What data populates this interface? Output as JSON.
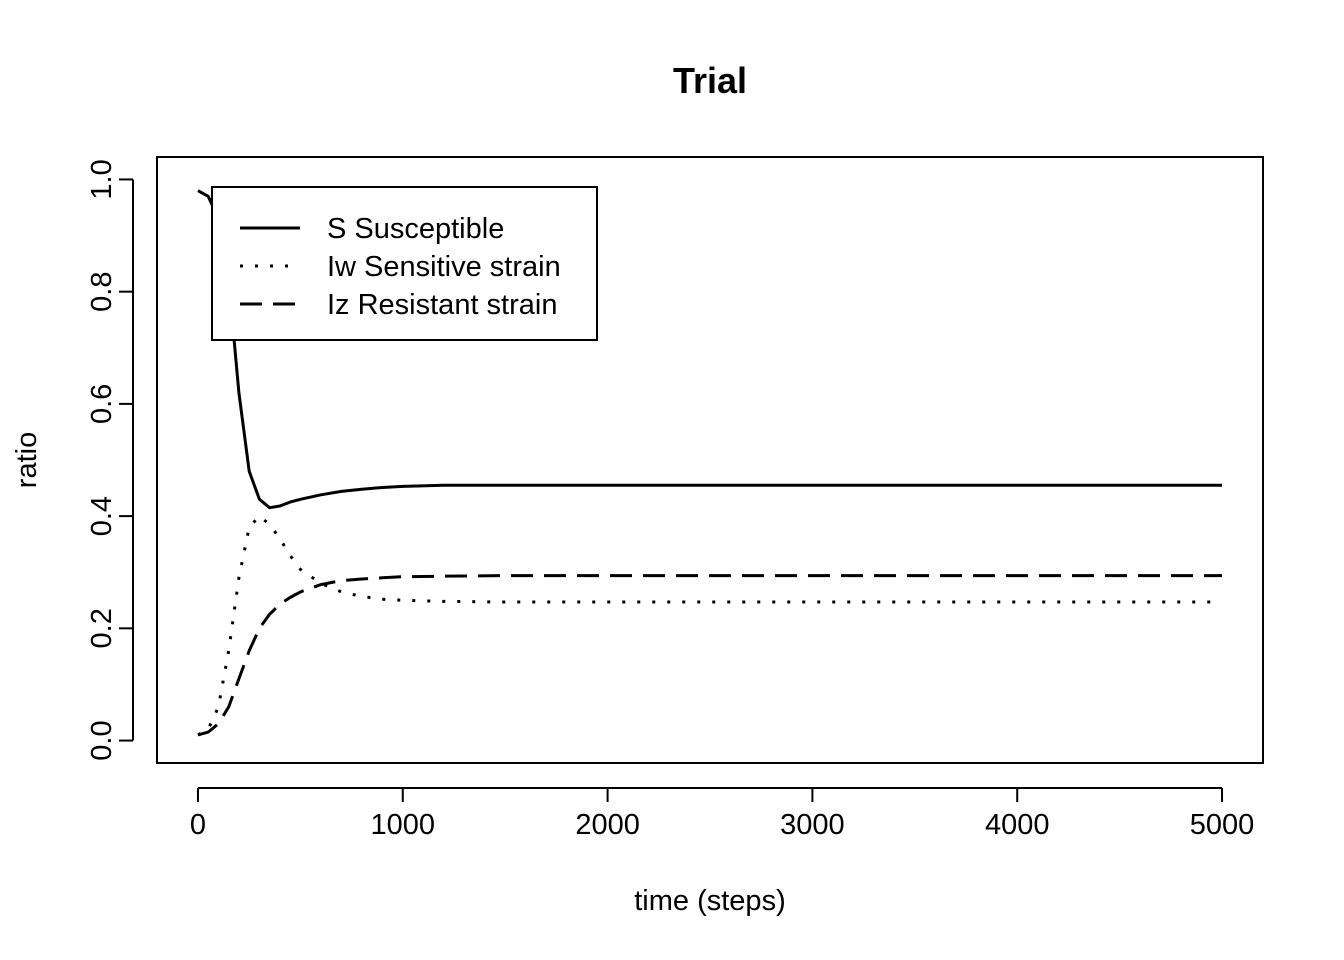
{
  "chart_data": {
    "type": "line",
    "title": "Trial",
    "xlabel": "time (steps)",
    "ylabel": "ratio",
    "xlim": [
      -200,
      5200
    ],
    "ylim": [
      -0.04,
      1.04
    ],
    "xticks": [
      0,
      1000,
      2000,
      3000,
      4000,
      5000
    ],
    "xtick_labels": [
      "0",
      "1000",
      "2000",
      "3000",
      "4000",
      "5000"
    ],
    "yticks": [
      0.0,
      0.2,
      0.4,
      0.6,
      0.8,
      1.0
    ],
    "ytick_labels": [
      "0.0",
      "0.2",
      "0.4",
      "0.6",
      "0.8",
      "1.0"
    ],
    "grid": false,
    "legend_position": "top-left",
    "x": [
      0,
      50,
      100,
      150,
      200,
      250,
      300,
      350,
      400,
      450,
      500,
      600,
      700,
      800,
      900,
      1000,
      1200,
      1500,
      2000,
      3000,
      4000,
      5000
    ],
    "series": [
      {
        "name": "S Susceptible",
        "style": "solid",
        "color": "#000000",
        "values": [
          0.98,
          0.97,
          0.93,
          0.82,
          0.62,
          0.48,
          0.43,
          0.415,
          0.418,
          0.425,
          0.43,
          0.438,
          0.444,
          0.448,
          0.451,
          0.453,
          0.455,
          0.455,
          0.455,
          0.455,
          0.455,
          0.455
        ]
      },
      {
        "name": "Iw Sensitive strain",
        "style": "dotted",
        "color": "#000000",
        "values": [
          0.01,
          0.02,
          0.06,
          0.16,
          0.29,
          0.38,
          0.4,
          0.385,
          0.36,
          0.33,
          0.305,
          0.28,
          0.265,
          0.257,
          0.252,
          0.25,
          0.248,
          0.247,
          0.247,
          0.247,
          0.247,
          0.247
        ]
      },
      {
        "name": "Iz Resistant strain",
        "style": "dashed",
        "color": "#000000",
        "values": [
          0.01,
          0.015,
          0.03,
          0.06,
          0.11,
          0.16,
          0.2,
          0.225,
          0.243,
          0.255,
          0.265,
          0.278,
          0.285,
          0.288,
          0.29,
          0.292,
          0.293,
          0.294,
          0.294,
          0.294,
          0.294,
          0.294
        ]
      }
    ]
  }
}
